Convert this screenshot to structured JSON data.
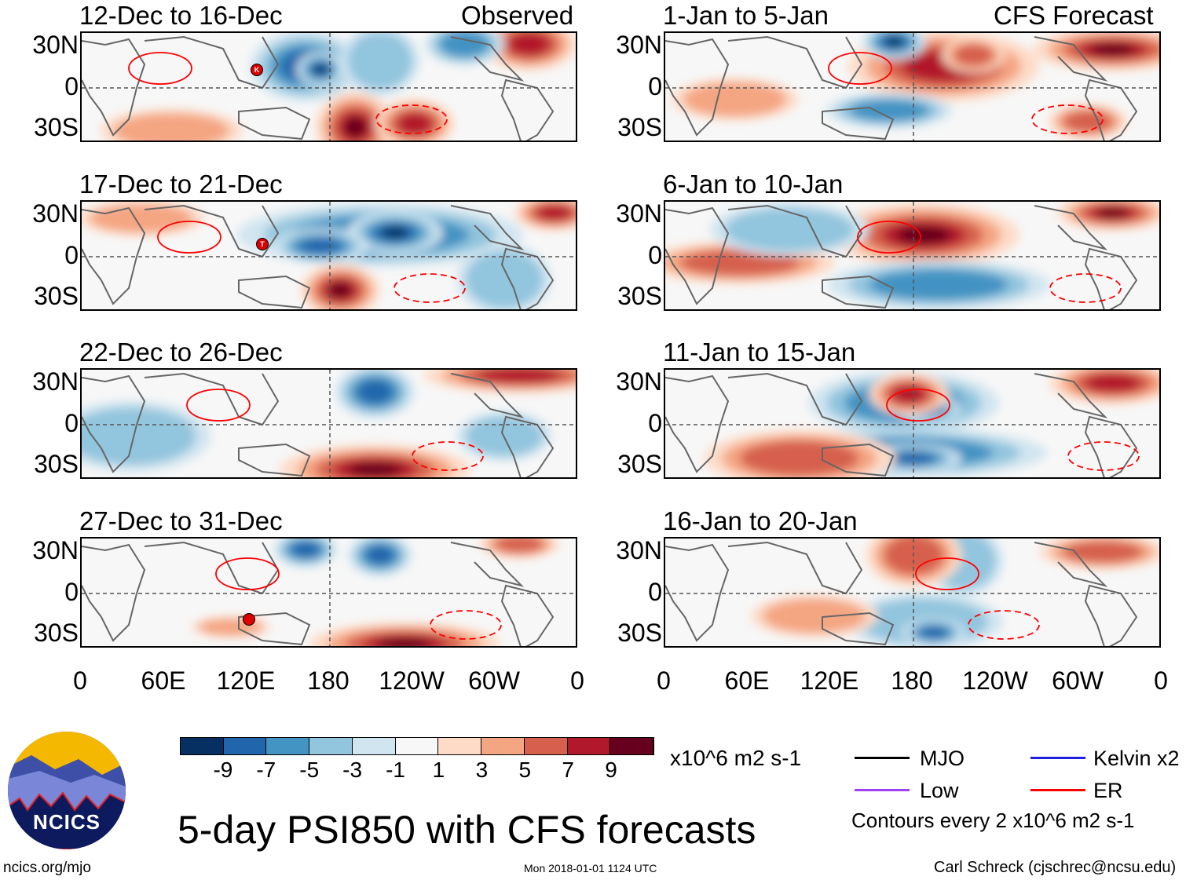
{
  "observed_label": "Observed",
  "forecast_label": "CFS Forecast",
  "panels_left": [
    "12-Dec to 16-Dec",
    "17-Dec to 21-Dec",
    "22-Dec to 26-Dec",
    "27-Dec to 31-Dec"
  ],
  "panels_right": [
    "1-Jan to 5-Jan",
    "6-Jan to 10-Jan",
    "11-Jan to 15-Jan",
    "16-Jan to 20-Jan"
  ],
  "lat_labels": [
    "30N",
    "0",
    "30S"
  ],
  "lon_labels": [
    "0",
    "60E",
    "120E",
    "180",
    "120W",
    "60W",
    "0"
  ],
  "colorbar": {
    "colors": [
      "#053061",
      "#2166ac",
      "#4393c3",
      "#92c5de",
      "#d1e5f0",
      "#f7f7f7",
      "#fddbc7",
      "#f4a582",
      "#d6604d",
      "#b2182b",
      "#67001f"
    ],
    "labels": [
      "-9",
      "-7",
      "-5",
      "-3",
      "-1",
      "1",
      "3",
      "5",
      "7",
      "9"
    ],
    "units": "x10^6 m2 s-1"
  },
  "legend": [
    {
      "label": "MJO",
      "color": "#000000"
    },
    {
      "label": "Kelvin x2",
      "color": "#1f1fe0"
    },
    {
      "label": "Low",
      "color": "#a040f0"
    },
    {
      "label": "ER",
      "color": "#ff0000"
    }
  ],
  "contour_note": "Contours every 2 x10^6 m2 s-1",
  "title": "5-day PSI850 with CFS forecasts",
  "logo_text": "NCICS",
  "url": "ncics.org/mjo",
  "timestamp": "Mon 2018-01-01 1124 UTC",
  "author": "Carl Schreck (cjschrec@ncsu.edu)",
  "storm_markers": [
    "K",
    "T",
    "H"
  ]
}
